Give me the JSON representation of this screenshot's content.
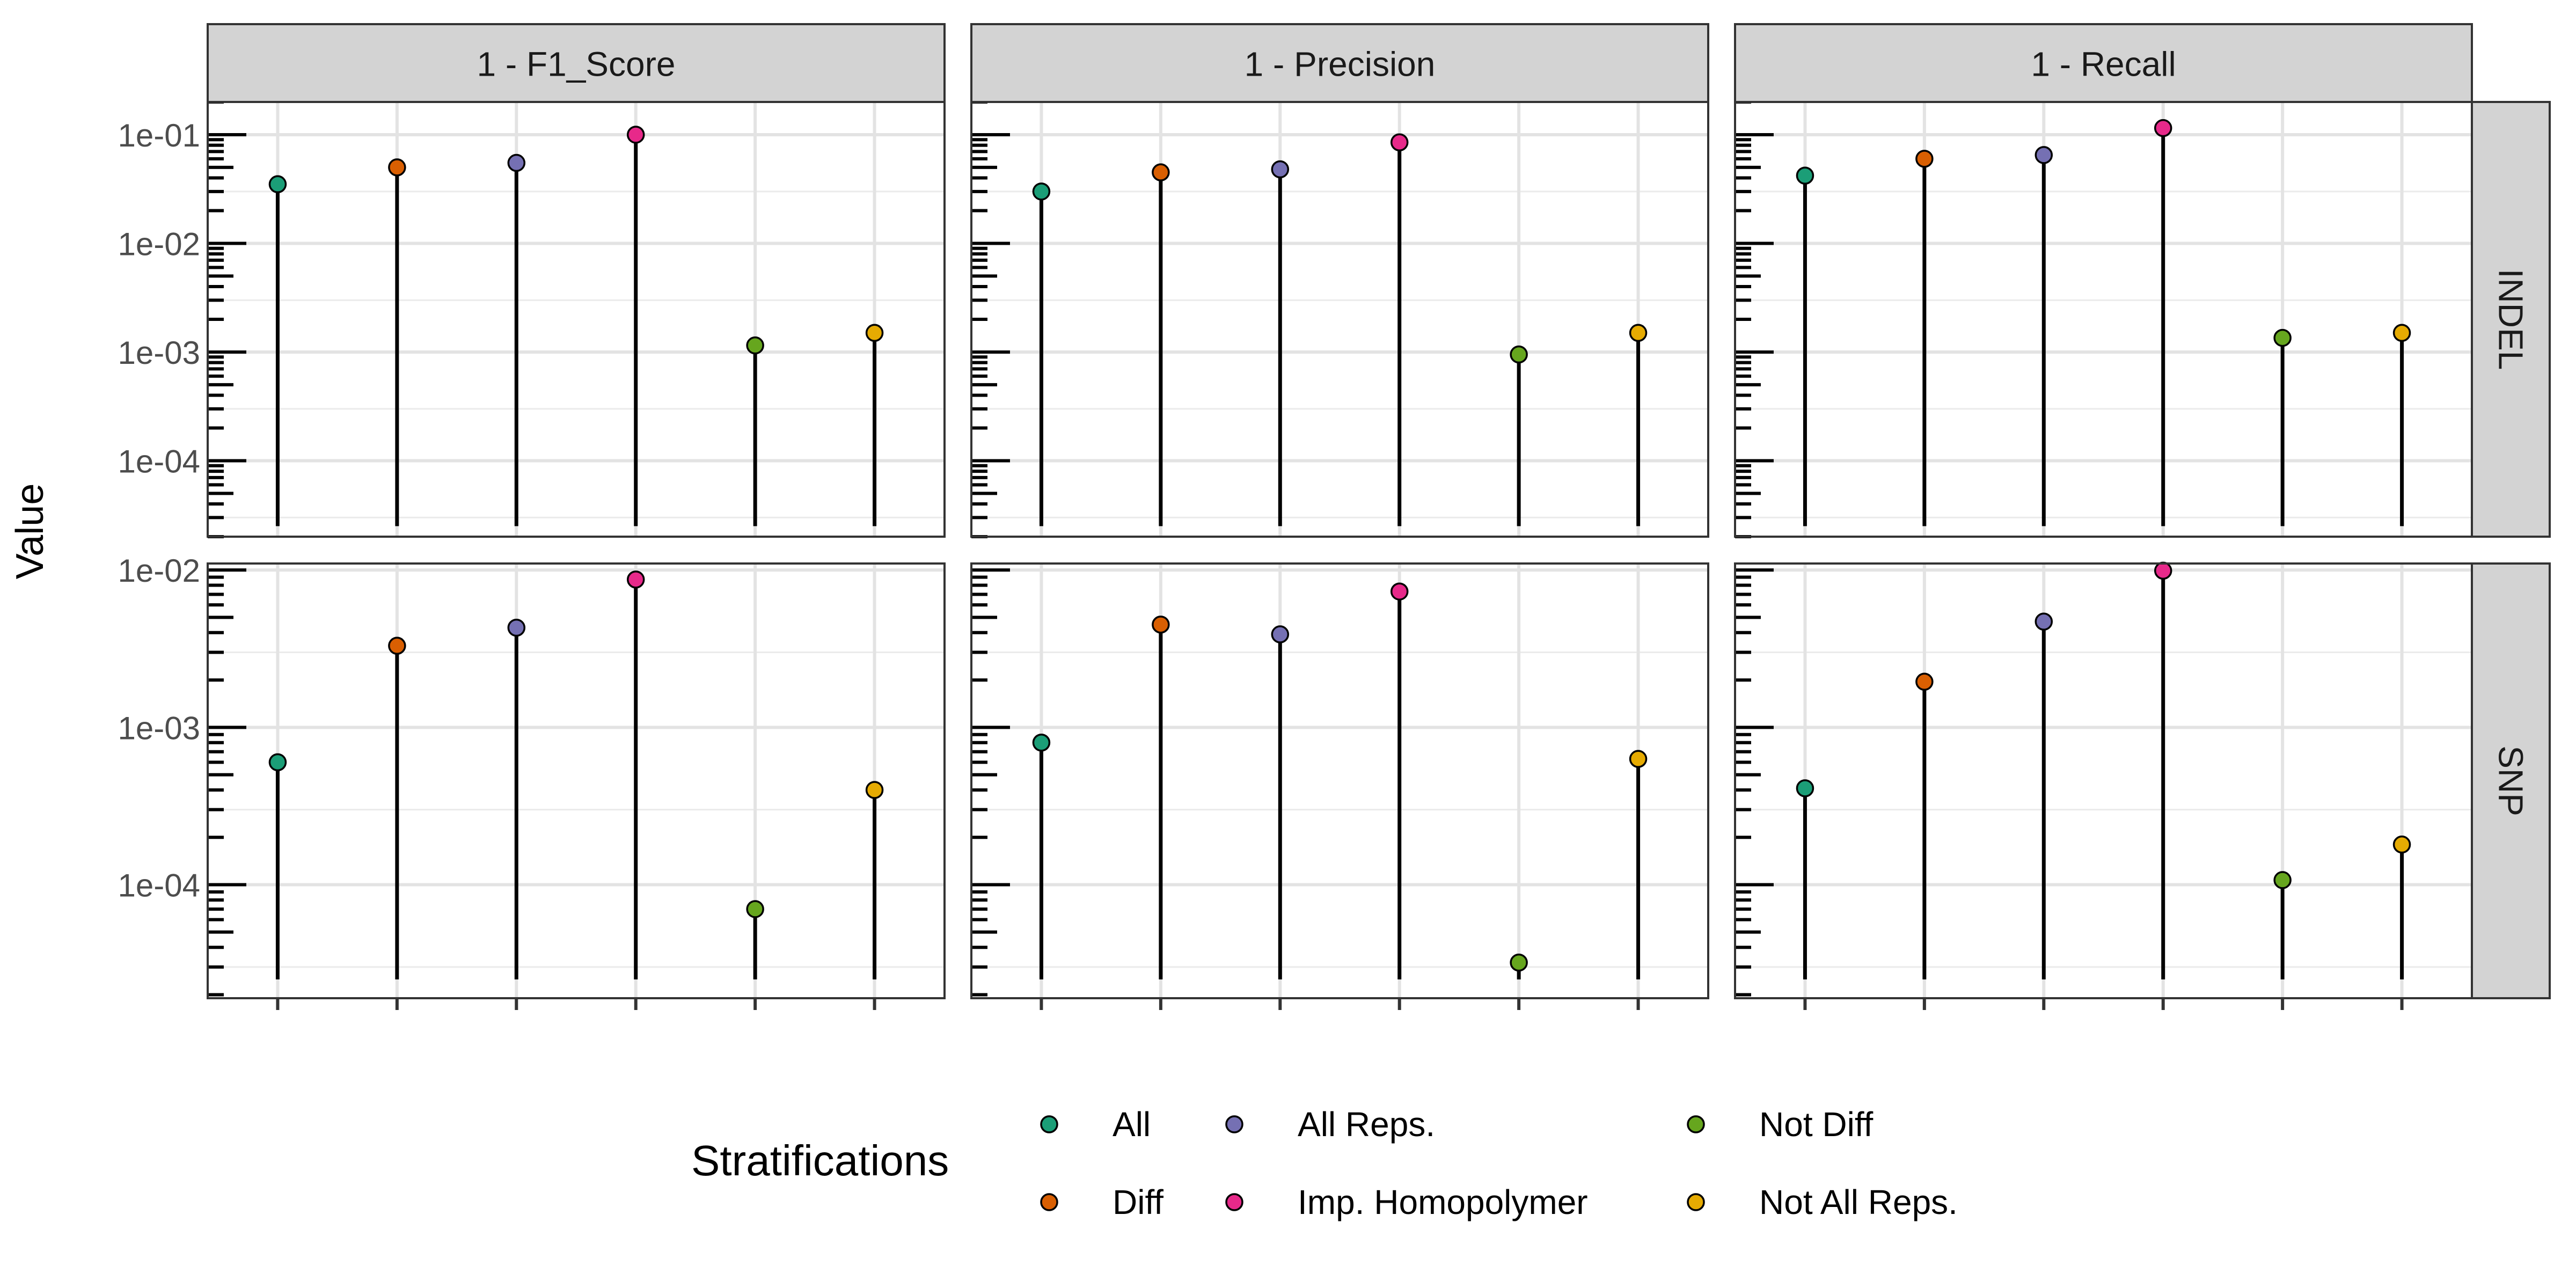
{
  "chart_data": {
    "type": "lollipop",
    "ylabel": "Value",
    "xlabel": "",
    "y_scale": "log10",
    "grid": true,
    "legend_position": "bottom",
    "columns": [
      "1 - F1_Score",
      "1 - Precision",
      "1 - Recall"
    ],
    "rows": [
      "INDEL",
      "SNP"
    ],
    "categories": [
      "All",
      "Diff",
      "All Reps.",
      "Imp. Homopolymer",
      "Not Diff",
      "Not All Reps."
    ],
    "colors": [
      "#1b9e77",
      "#d95f02",
      "#7570b3",
      "#e7298a",
      "#66a61e",
      "#e6ab02"
    ],
    "row_axes": [
      {
        "row": "INDEL",
        "ylim": [
          2e-05,
          0.2
        ],
        "ticks": [
          0.1,
          0.01,
          0.001,
          0.0001
        ],
        "tick_labels": [
          "1e-01",
          "1e-02",
          "1e-03",
          "1e-04"
        ]
      },
      {
        "row": "SNP",
        "ylim": [
          1.9e-05,
          0.011
        ],
        "ticks": [
          0.01,
          0.001,
          0.0001
        ],
        "tick_labels": [
          "1e-02",
          "1e-03",
          "1e-04"
        ]
      }
    ],
    "baseline": 2.5e-05,
    "panels": [
      {
        "column": "1 - F1_Score",
        "row": "INDEL",
        "values": [
          0.035,
          0.05,
          0.055,
          0.1,
          0.00115,
          0.0015
        ]
      },
      {
        "column": "1 - Precision",
        "row": "INDEL",
        "values": [
          0.03,
          0.045,
          0.048,
          0.085,
          0.00095,
          0.0015
        ]
      },
      {
        "column": "1 - Recall",
        "row": "INDEL",
        "values": [
          0.042,
          0.06,
          0.065,
          0.115,
          0.00135,
          0.0015
        ]
      },
      {
        "column": "1 - F1_Score",
        "row": "SNP",
        "values": [
          0.0006,
          0.0033,
          0.0043,
          0.0087,
          7e-05,
          0.0004
        ]
      },
      {
        "column": "1 - Precision",
        "row": "SNP",
        "values": [
          0.0008,
          0.0045,
          0.0039,
          0.0073,
          3.2e-05,
          0.00063
        ]
      },
      {
        "column": "1 - Recall",
        "row": "SNP",
        "values": [
          0.00041,
          0.00195,
          0.0047,
          0.0099,
          0.000107,
          0.00018
        ]
      }
    ],
    "legend": {
      "title": "Stratifications",
      "entries": [
        "All",
        "Diff",
        "All Reps.",
        "Imp. Homopolymer",
        "Not Diff",
        "Not All Reps."
      ]
    }
  }
}
